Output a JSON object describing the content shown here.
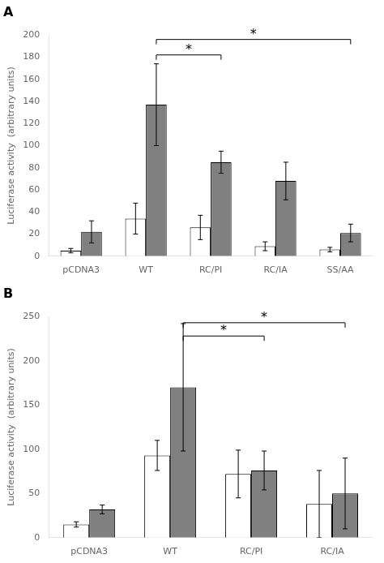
{
  "chart_data": [
    {
      "type": "bar",
      "title": "A",
      "categories": [
        "pCDNA3",
        "WT",
        "RC/PI",
        "RC/IA",
        "SS/AA"
      ],
      "series": [
        {
          "color": "#ffffff",
          "values": [
            5,
            34,
            26,
            9,
            6
          ],
          "errors": [
            2,
            14,
            11,
            4,
            2
          ]
        },
        {
          "color": "#808080",
          "values": [
            22,
            137,
            85,
            68,
            21
          ],
          "errors": [
            10,
            37,
            10,
            17,
            8
          ]
        }
      ],
      "ylabel": "Luciferase activity  (arbitrary units)",
      "ylim": [
        0,
        200
      ],
      "yticks": [
        0,
        20,
        40,
        60,
        80,
        100,
        120,
        140,
        160,
        180,
        200
      ],
      "grid": false,
      "annotations": [
        {
          "text": "*",
          "x1": "WT",
          "x2": "RC/PI",
          "y": 182
        },
        {
          "text": "*",
          "x1": "WT",
          "x2": "SS/AA",
          "y": 196
        }
      ]
    },
    {
      "type": "bar",
      "title": "B",
      "categories": [
        "pCDNA3",
        "WT",
        "RC/PI",
        "RC/IA"
      ],
      "series": [
        {
          "color": "#ffffff",
          "values": [
            15,
            93,
            72,
            38
          ],
          "errors": [
            3,
            17,
            27,
            38
          ]
        },
        {
          "color": "#808080",
          "values": [
            32,
            170,
            76,
            50
          ],
          "errors": [
            5,
            72,
            22,
            40
          ]
        }
      ],
      "ylabel": "Luciferase activity  (arbitrary units)",
      "ylim": [
        0,
        250
      ],
      "yticks": [
        0,
        50,
        100,
        150,
        200,
        250
      ],
      "grid": false,
      "annotations": [
        {
          "text": "*",
          "x1": "WT",
          "x2": "RC/PI",
          "y": 228
        },
        {
          "text": "*",
          "x1": "WT",
          "x2": "RC/IA",
          "y": 243
        }
      ]
    }
  ]
}
